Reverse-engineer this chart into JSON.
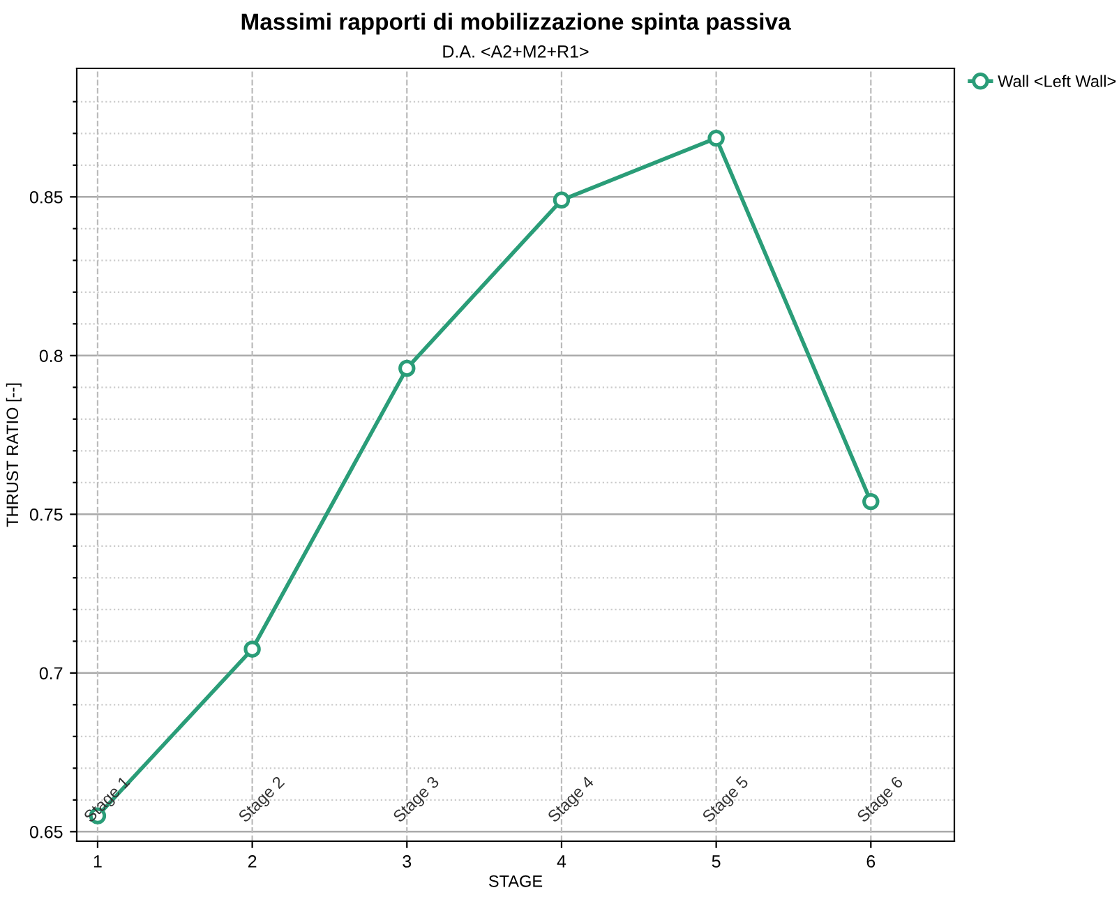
{
  "chart_data": {
    "type": "line",
    "title": "Massimi rapporti di mobilizzazione spinta passiva",
    "subtitle": "D.A. <A2+M2+R1>",
    "xlabel": "STAGE",
    "ylabel": "THRUST RATIO [--]",
    "x": [
      1,
      2,
      3,
      4,
      5,
      6
    ],
    "series": [
      {
        "name": "Wall <Left Wall>",
        "color": "#2a9d78",
        "values": [
          0.655,
          0.7075,
          0.796,
          0.849,
          0.8685,
          0.754
        ]
      }
    ],
    "annotations": [
      "Stage 1",
      "Stage 2",
      "Stage 3",
      "Stage 4",
      "Stage 5",
      "Stage 6"
    ],
    "xlim": [
      0.865,
      6.54
    ],
    "ylim": [
      0.647,
      0.8905
    ],
    "xticks": [
      1,
      2,
      3,
      4,
      5,
      6
    ],
    "yticks": [
      0.65,
      {
        "value": 0.66,
        "label": null
      },
      {
        "value": 0.67,
        "label": null
      },
      {
        "value": 0.68,
        "label": null
      },
      {
        "value": 0.69,
        "label": null
      },
      0.7,
      {
        "value": 0.71,
        "label": null
      },
      {
        "value": 0.72,
        "label": null
      },
      {
        "value": 0.73,
        "label": null
      },
      {
        "value": 0.74,
        "label": null
      },
      0.75,
      {
        "value": 0.76,
        "label": null
      },
      {
        "value": 0.77,
        "label": null
      },
      {
        "value": 0.78,
        "label": null
      },
      {
        "value": 0.79,
        "label": null
      },
      0.8,
      {
        "value": 0.81,
        "label": null
      },
      {
        "value": 0.82,
        "label": null
      },
      {
        "value": 0.83,
        "label": null
      },
      {
        "value": 0.84,
        "label": null
      },
      0.85,
      {
        "value": 0.86,
        "label": null
      },
      {
        "value": 0.87,
        "label": null
      },
      {
        "value": 0.88,
        "label": null
      }
    ],
    "grid": true,
    "legend": "top right",
    "marker": "circle",
    "line_style": "solid"
  }
}
